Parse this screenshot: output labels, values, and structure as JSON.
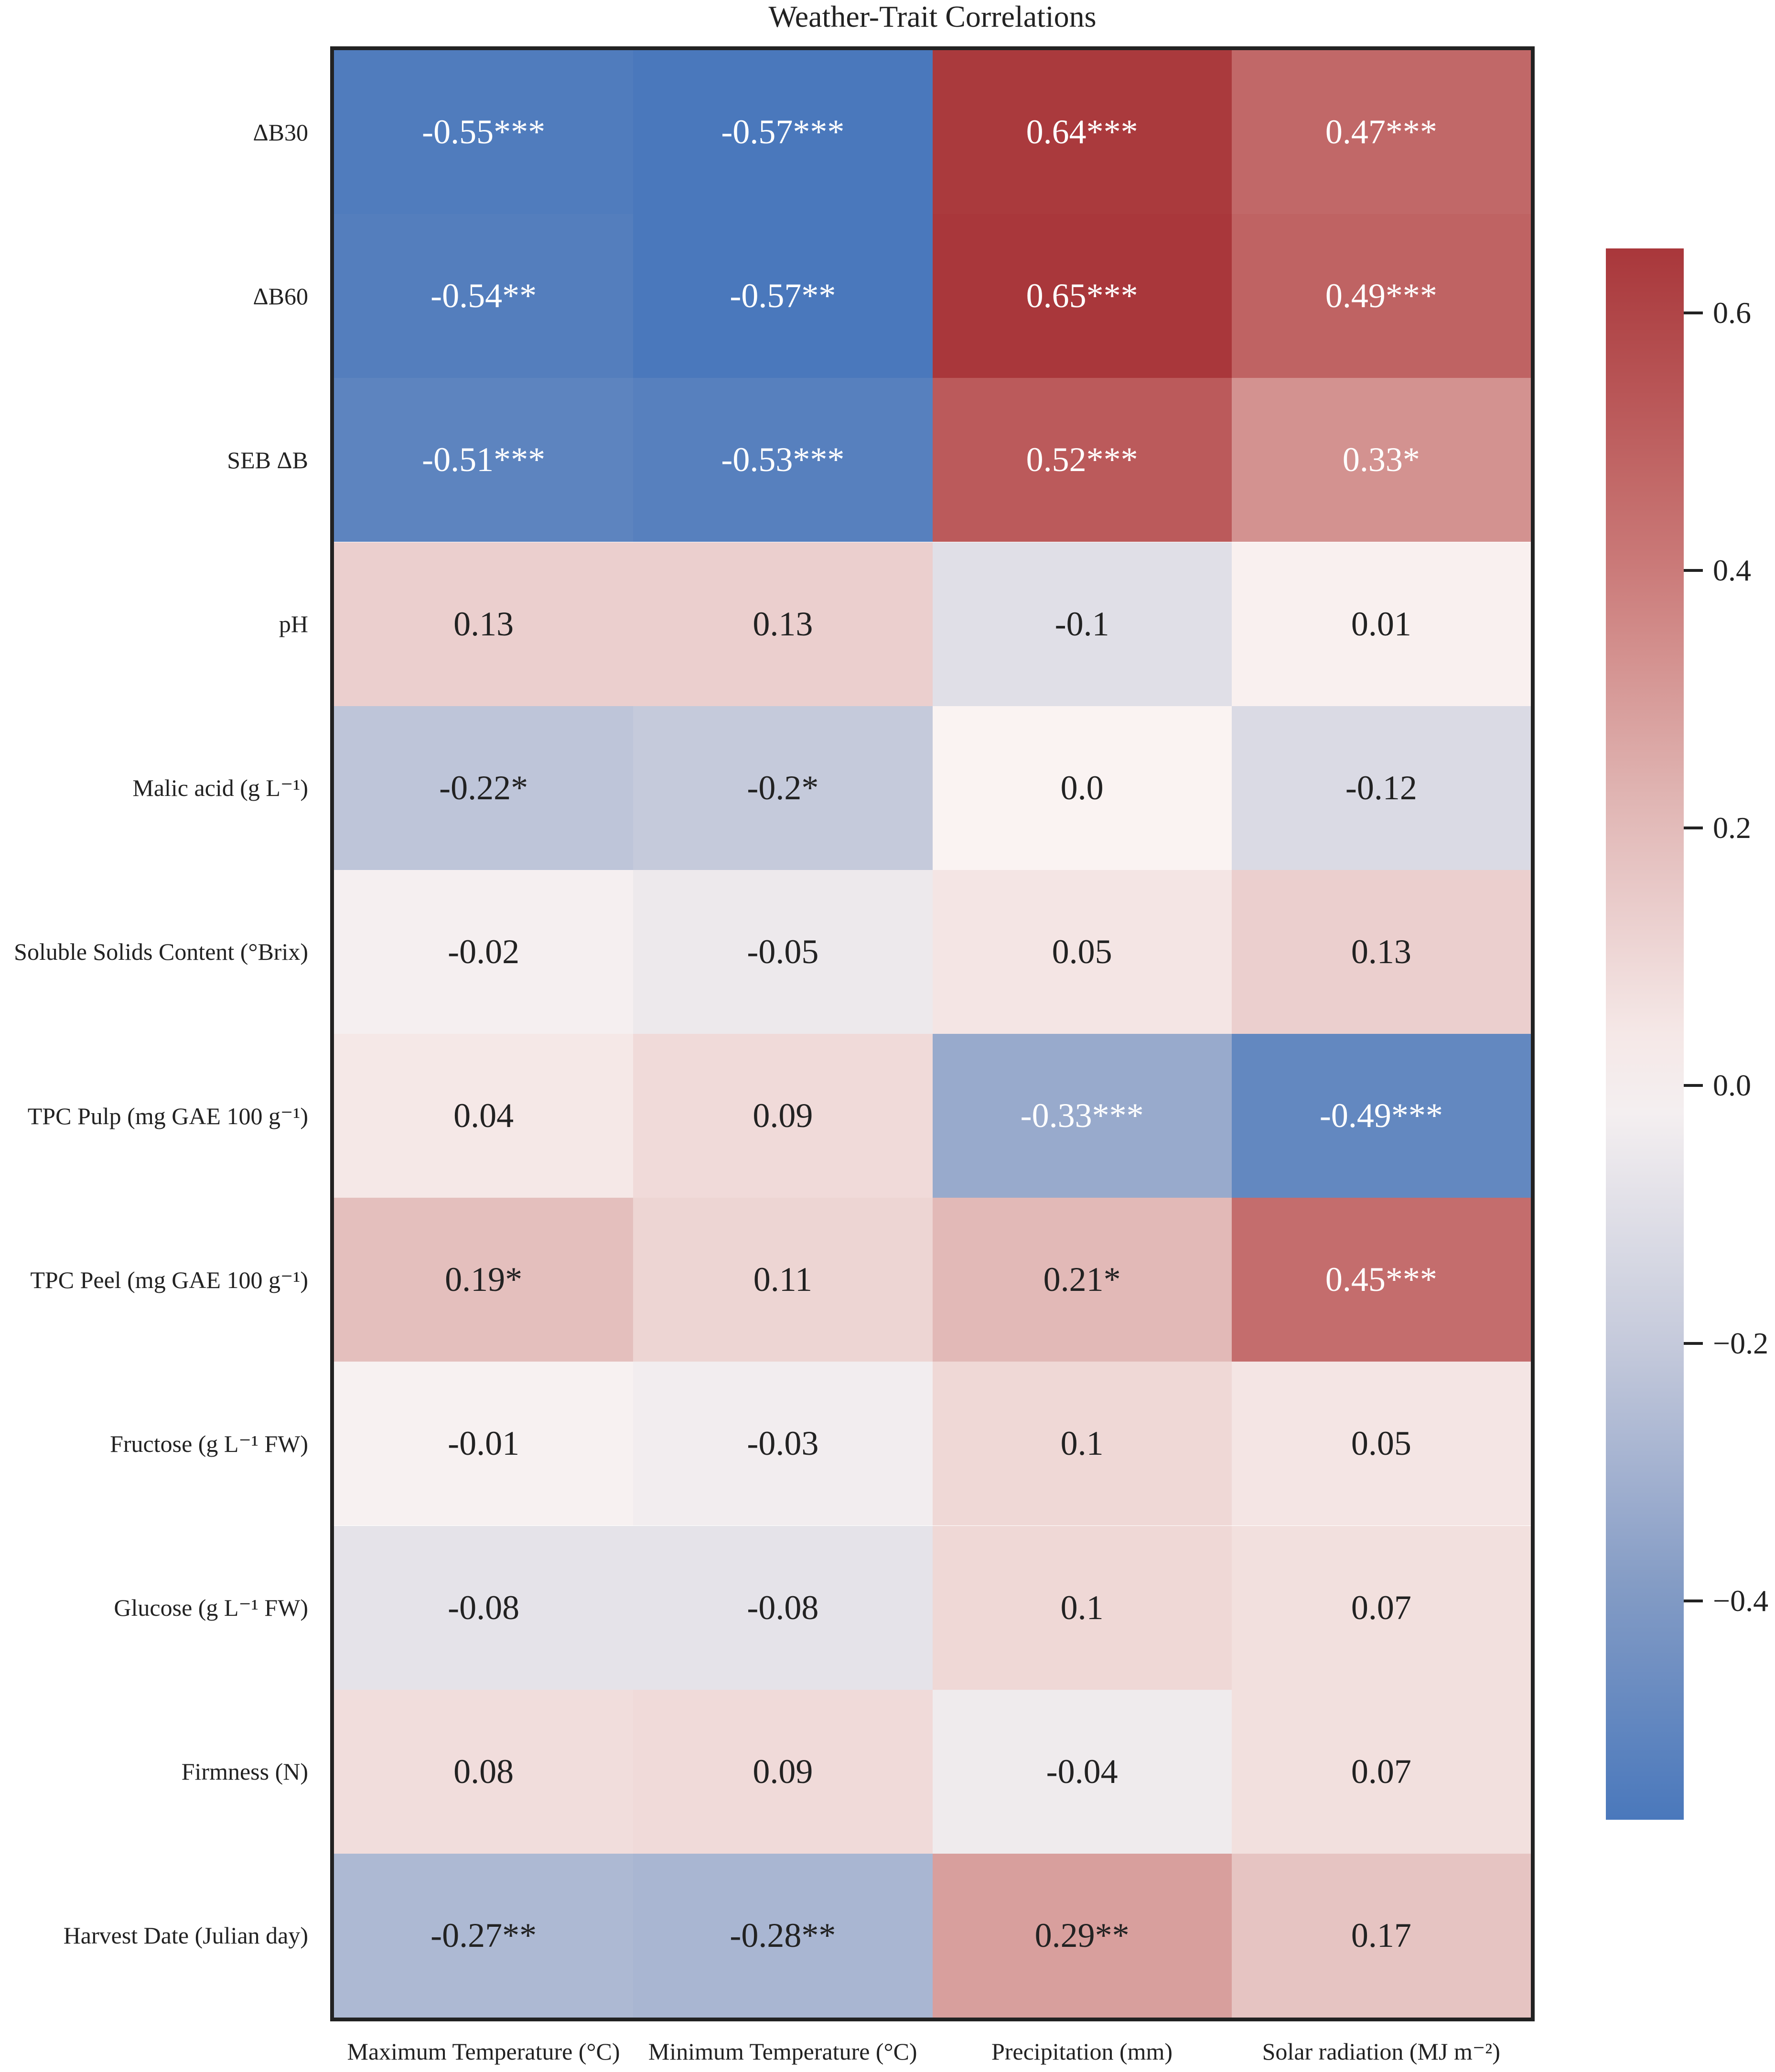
{
  "chart_data": {
    "type": "heatmap",
    "title": "Weather-Trait Correlations",
    "columns": [
      "Maximum Temperature (°C)",
      "Minimum Temperature (°C)",
      "Precipitation (mm)",
      "Solar radiation (MJ m⁻²)"
    ],
    "rows": [
      "ΔB30",
      "ΔB60",
      "SEB ΔB",
      "pH",
      "Malic acid (g L⁻¹)",
      "Soluble Solids Content (°Brix)",
      "TPC Pulp (mg GAE 100 g⁻¹)",
      "TPC Peel (mg GAE 100 g⁻¹)",
      "Fructose (g L⁻¹ FW)",
      "Glucose (g L⁻¹ FW)",
      "Firmness (N)",
      "Harvest Date (Julian day)"
    ],
    "values": [
      [
        -0.55,
        -0.57,
        0.64,
        0.47
      ],
      [
        -0.54,
        -0.57,
        0.65,
        0.49
      ],
      [
        -0.51,
        -0.53,
        0.52,
        0.33
      ],
      [
        0.13,
        0.13,
        -0.1,
        0.01
      ],
      [
        -0.22,
        -0.2,
        0.0,
        -0.12
      ],
      [
        -0.02,
        -0.05,
        0.05,
        0.13
      ],
      [
        0.04,
        0.09,
        -0.33,
        -0.49
      ],
      [
        0.19,
        0.11,
        0.21,
        0.45
      ],
      [
        -0.01,
        -0.03,
        0.1,
        0.05
      ],
      [
        -0.08,
        -0.08,
        0.1,
        0.07
      ],
      [
        0.08,
        0.09,
        -0.04,
        0.07
      ],
      [
        -0.27,
        -0.28,
        0.29,
        0.17
      ]
    ],
    "annotations": [
      [
        "-0.55***",
        "-0.57***",
        "0.64***",
        "0.47***"
      ],
      [
        "-0.54**",
        "-0.57**",
        "0.65***",
        "0.49***"
      ],
      [
        "-0.51***",
        "-0.53***",
        "0.52***",
        "0.33*"
      ],
      [
        "0.13",
        "0.13",
        "-0.1",
        "0.01"
      ],
      [
        "-0.22*",
        "-0.2*",
        "0.0",
        "-0.12"
      ],
      [
        "-0.02",
        "-0.05",
        "0.05",
        "0.13"
      ],
      [
        "0.04",
        "0.09",
        "-0.33***",
        "-0.49***"
      ],
      [
        "0.19*",
        "0.11",
        "0.21*",
        "0.45***"
      ],
      [
        "-0.01",
        "-0.03",
        "0.1",
        "0.05"
      ],
      [
        "-0.08",
        "-0.08",
        "0.1",
        "0.07"
      ],
      [
        "0.08",
        "0.09",
        "-0.04",
        "0.07"
      ],
      [
        "-0.27**",
        "-0.28**",
        "0.29**",
        "0.17"
      ]
    ],
    "colorbar": {
      "range": [
        -0.57,
        0.65
      ],
      "ticks": [
        0.6,
        0.4,
        0.2,
        0.0,
        -0.2,
        -0.4
      ],
      "tick_labels": [
        "0.6",
        "0.4",
        "0.2",
        "0.0",
        "−0.2",
        "−0.4"
      ],
      "colors": {
        "low": "#4a78bc",
        "mid": "#faf3f2",
        "high": "#a9373b"
      }
    }
  }
}
